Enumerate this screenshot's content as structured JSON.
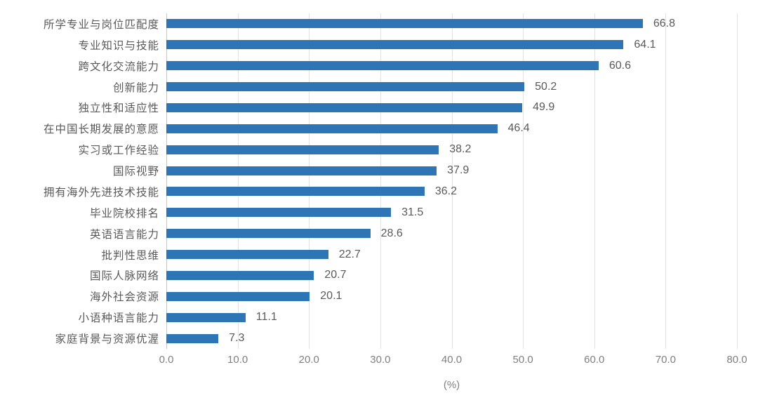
{
  "chart_data": {
    "type": "bar",
    "orientation": "horizontal",
    "title": "",
    "categories": [
      "所学专业与岗位匹配度",
      "专业知识与技能",
      "跨文化交流能力",
      "创新能力",
      "独立性和适应性",
      "在中国长期发展的意愿",
      "实习或工作经验",
      "国际视野",
      "拥有海外先进技术技能",
      "毕业院校排名",
      "英语语言能力",
      "批判性思维",
      "国际人脉网络",
      "海外社会资源",
      "小语种语言能力",
      "家庭背景与资源优渥"
    ],
    "values": [
      66.8,
      64.1,
      60.6,
      50.2,
      49.9,
      46.4,
      38.2,
      37.9,
      36.2,
      31.5,
      28.6,
      22.7,
      20.7,
      20.1,
      11.1,
      7.3
    ],
    "xlabel": "(%)",
    "xlim": [
      0,
      80
    ],
    "xtick_step": 10,
    "xticks": [
      "0.0",
      "10.0",
      "20.0",
      "30.0",
      "40.0",
      "50.0",
      "60.0",
      "70.0",
      "80.0"
    ],
    "grid": true,
    "legend": false,
    "value_labels_shown": true,
    "colors": {
      "bar": "#2E75B6",
      "grid_line": "#E2E2E2",
      "axis_line": "#C6C6C6",
      "category_label": "#595959",
      "value_label": "#595959",
      "tick_label": "#808080",
      "background": "#FFFFFF"
    }
  }
}
